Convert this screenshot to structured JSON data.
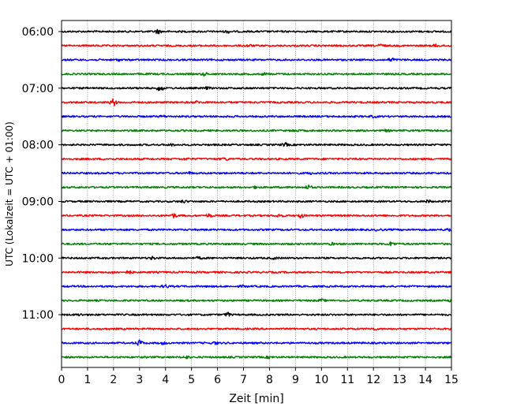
{
  "chart_data": {
    "type": "line",
    "xlabel": "Zeit  [min]",
    "ylabel": "UTC (Lokalzeit = UTC + 01:00)",
    "xlim": [
      0,
      15
    ],
    "x_ticks": [
      "0",
      "1",
      "2",
      "3",
      "4",
      "5",
      "6",
      "7",
      "8",
      "9",
      "10",
      "11",
      "12",
      "13",
      "14",
      "15"
    ],
    "y_ticks": [
      "06:00",
      "07:00",
      "08:00",
      "09:00",
      "10:00",
      "11:00"
    ],
    "grid": "vertical dotted at each minute",
    "trace_interval_minutes": 15,
    "traces": [
      {
        "start": "06:00",
        "color": "#000000",
        "events": [
          [
            3.7,
            2.2
          ],
          [
            6.4,
            1.3
          ]
        ]
      },
      {
        "start": "06:15",
        "color": "#ff0000",
        "events": [
          [
            7.2,
            1.1
          ],
          [
            12.3,
            1.6
          ],
          [
            14.4,
            1.1
          ]
        ]
      },
      {
        "start": "06:30",
        "color": "#0000ff",
        "events": [
          [
            12.7,
            2.0
          ],
          [
            2.2,
            0.9
          ]
        ]
      },
      {
        "start": "06:45",
        "color": "#008000",
        "events": [
          [
            5.5,
            1.6
          ],
          [
            7.8,
            1.0
          ]
        ]
      },
      {
        "start": "07:00",
        "color": "#000000",
        "events": [
          [
            3.8,
            3.2
          ],
          [
            5.6,
            1.0
          ]
        ]
      },
      {
        "start": "07:15",
        "color": "#ff0000",
        "events": [
          [
            2.0,
            4.0
          ],
          [
            5.2,
            1.1
          ]
        ]
      },
      {
        "start": "07:30",
        "color": "#0000ff",
        "events": [
          [
            3.9,
            1.0
          ],
          [
            12.0,
            1.0
          ]
        ]
      },
      {
        "start": "07:45",
        "color": "#008000",
        "events": [
          [
            9.0,
            1.0
          ],
          [
            12.5,
            0.9
          ]
        ]
      },
      {
        "start": "08:00",
        "color": "#000000",
        "events": [
          [
            8.6,
            1.8
          ],
          [
            4.2,
            1.0
          ]
        ]
      },
      {
        "start": "08:15",
        "color": "#ff0000",
        "events": [
          [
            6.3,
            1.4
          ],
          [
            4.8,
            0.9
          ]
        ]
      },
      {
        "start": "08:30",
        "color": "#0000ff",
        "events": [
          [
            4.9,
            1.0
          ],
          [
            9.6,
            0.8
          ]
        ]
      },
      {
        "start": "08:45",
        "color": "#008000",
        "events": [
          [
            9.5,
            2.2
          ],
          [
            7.5,
            1.0
          ]
        ]
      },
      {
        "start": "09:00",
        "color": "#000000",
        "events": [
          [
            4.7,
            1.1
          ],
          [
            14.1,
            1.3
          ]
        ]
      },
      {
        "start": "09:15",
        "color": "#ff0000",
        "events": [
          [
            4.3,
            2.2
          ],
          [
            5.7,
            1.8
          ],
          [
            8.4,
            1.8
          ],
          [
            9.2,
            2.4
          ]
        ]
      },
      {
        "start": "09:30",
        "color": "#0000ff",
        "events": [
          [
            12.2,
            1.2
          ],
          [
            14.9,
            1.5
          ]
        ]
      },
      {
        "start": "09:45",
        "color": "#008000",
        "events": [
          [
            12.7,
            2.2
          ],
          [
            10.4,
            1.0
          ]
        ]
      },
      {
        "start": "10:00",
        "color": "#000000",
        "events": [
          [
            3.5,
            1.4
          ],
          [
            5.3,
            1.1
          ],
          [
            8.2,
            1.0
          ]
        ]
      },
      {
        "start": "10:15",
        "color": "#ff0000",
        "events": [
          [
            2.6,
            1.6
          ],
          [
            2.0,
            0.9
          ]
        ]
      },
      {
        "start": "10:30",
        "color": "#0000ff",
        "events": [
          [
            4.0,
            1.5
          ],
          [
            7.0,
            0.9
          ]
        ]
      },
      {
        "start": "10:45",
        "color": "#008000",
        "events": [
          [
            10.0,
            1.2
          ],
          [
            15.0,
            1.8
          ]
        ]
      },
      {
        "start": "11:00",
        "color": "#000000",
        "events": [
          [
            6.4,
            2.0
          ],
          [
            0.7,
            0.9
          ]
        ]
      },
      {
        "start": "11:15",
        "color": "#ff0000",
        "events": [
          [
            12.0,
            0.9
          ]
        ]
      },
      {
        "start": "11:30",
        "color": "#0000ff",
        "events": [
          [
            3.0,
            3.0
          ],
          [
            3.9,
            1.2
          ],
          [
            5.9,
            1.3
          ]
        ]
      },
      {
        "start": "11:45",
        "color": "#008000",
        "events": [
          [
            4.8,
            1.3
          ],
          [
            8.0,
            0.9
          ]
        ]
      }
    ]
  }
}
